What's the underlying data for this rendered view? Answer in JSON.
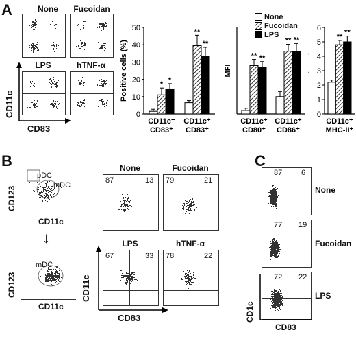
{
  "panel_letters": {
    "a": "A",
    "b": "B",
    "c": "C"
  },
  "panel_a": {
    "flow_titles": [
      "None",
      "Fucoidan",
      "LPS",
      "hTNF-α"
    ],
    "x_axis": "CD83",
    "y_axis": "CD11c"
  },
  "panel_b": {
    "gate_y": "CD123",
    "gate_x": "CD11c",
    "gate_pdc": "pDC",
    "gate_mdc": "mDC",
    "gate_mdc2": "mDC",
    "gate_arrow": "↓",
    "flow": [
      {
        "title": "None",
        "ul": "87",
        "ur": "13"
      },
      {
        "title": "Fucoidan",
        "ul": "79",
        "ur": "21"
      },
      {
        "title": "LPS",
        "ul": "67",
        "ur": "33"
      },
      {
        "title": "hTNF-α",
        "ul": "78",
        "ur": "22"
      }
    ],
    "x_axis": "CD83",
    "y_axis": "CD11c"
  },
  "panel_c": {
    "flow": [
      {
        "title": "None",
        "ul": "87",
        "ur": "6"
      },
      {
        "title": "Fucoidan",
        "ul": "77",
        "ur": "19"
      },
      {
        "title": "LPS",
        "ul": "72",
        "ur": "22"
      }
    ],
    "x_axis": "CD83",
    "y_axis": "CD1c"
  },
  "chart_data": [
    {
      "type": "bar",
      "ylabel": "Positive cells (%)",
      "ylim": [
        0,
        50
      ],
      "yticks": [
        "0",
        "10",
        "20",
        "30",
        "40",
        "50"
      ],
      "groups": [
        {
          "label1": "CD11c⁻",
          "label2": "CD83⁺"
        },
        {
          "label1": "CD11c⁺",
          "label2": "CD83⁺"
        }
      ],
      "series": [
        {
          "name": "None",
          "values": [
            1.5,
            6.5
          ],
          "errors": [
            1.2,
            1.2
          ],
          "sig": [
            "",
            ""
          ]
        },
        {
          "name": "Fucoidan",
          "values": [
            11,
            39.5
          ],
          "errors": [
            4,
            6
          ],
          "sig": [
            "*",
            "**"
          ]
        },
        {
          "name": "LPS",
          "values": [
            14.5,
            33.5
          ],
          "errors": [
            3,
            5
          ],
          "sig": [
            "*",
            "**"
          ]
        }
      ]
    },
    {
      "type": "bar",
      "ylabel": "MFI",
      "ylim": [
        0,
        20
      ],
      "groups": [
        {
          "label1": "CD11c⁺",
          "label2": "CD80⁺"
        },
        {
          "label1": "CD11c⁺",
          "label2": "CD86⁺"
        }
      ],
      "series": [
        {
          "name": "None",
          "values": [
            0.8,
            4
          ],
          "errors": [
            0.5,
            1.2
          ],
          "sig": [
            "",
            ""
          ]
        },
        {
          "name": "Fucoidan",
          "values": [
            11.2,
            14.5
          ],
          "errors": [
            1.4,
            1.6
          ],
          "sig": [
            "**",
            "**"
          ]
        },
        {
          "name": "LPS",
          "values": [
            10.8,
            14.5
          ],
          "errors": [
            1.3,
            1.8
          ],
          "sig": [
            "**",
            "**"
          ]
        }
      ],
      "legend": [
        "None",
        "Fucoidan",
        "LPS"
      ]
    },
    {
      "type": "bar",
      "ylabel": "MFI",
      "yunit": "(x 10²)",
      "ylim": [
        0,
        6
      ],
      "yticks": [
        "0",
        "1",
        "2",
        "3",
        "4",
        "5",
        "6"
      ],
      "groups": [
        {
          "label1": "CD11c⁺",
          "label2": "MHC-II⁺"
        }
      ],
      "series": [
        {
          "name": "None",
          "values": [
            2.2
          ],
          "errors": [
            0.15
          ],
          "sig": [
            ""
          ]
        },
        {
          "name": "Fucoidan",
          "values": [
            4.8
          ],
          "errors": [
            0.3
          ],
          "sig": [
            "**"
          ]
        },
        {
          "name": "LPS",
          "values": [
            5.0
          ],
          "errors": [
            0.4
          ],
          "sig": [
            "**"
          ]
        }
      ]
    }
  ]
}
